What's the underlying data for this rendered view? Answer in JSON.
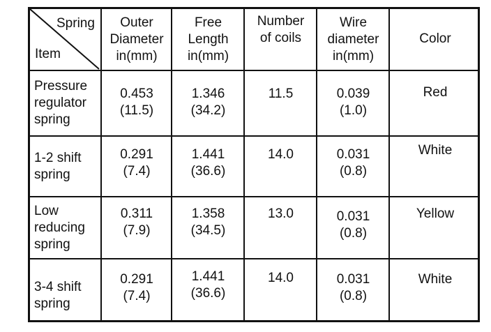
{
  "header": {
    "corner_top": "Spring",
    "corner_bottom": "Item",
    "columns": [
      [
        "Outer",
        "Diameter",
        "in(mm)"
      ],
      [
        "Free",
        "Length",
        "in(mm)"
      ],
      [
        "Number",
        "of coils"
      ],
      [
        "Wire",
        "diameter",
        "in(mm)"
      ],
      [
        "Color"
      ]
    ]
  },
  "rows": [
    {
      "item": [
        "Pressure",
        "regulator",
        "spring"
      ],
      "outer_diameter": [
        "0.453",
        "(11.5)"
      ],
      "free_length": [
        "1.346",
        "(34.2)"
      ],
      "number_of_coils": "11.5",
      "wire_diameter": [
        "0.039",
        "(1.0)"
      ],
      "color": "Red"
    },
    {
      "item": [
        "1-2 shift",
        "spring"
      ],
      "outer_diameter": [
        "0.291",
        "(7.4)"
      ],
      "free_length": [
        "1.441",
        "(36.6)"
      ],
      "number_of_coils": "14.0",
      "wire_diameter": [
        "0.031",
        "(0.8)"
      ],
      "color": "White"
    },
    {
      "item": [
        "Low",
        "reducing",
        "spring"
      ],
      "outer_diameter": [
        "0.311",
        "(7.9)"
      ],
      "free_length": [
        "1.358",
        "(34.5)"
      ],
      "number_of_coils": "13.0",
      "wire_diameter": [
        "0.031",
        "(0.8)"
      ],
      "color": "Yellow"
    },
    {
      "item": [
        "3-4 shift",
        "spring"
      ],
      "outer_diameter": [
        "0.291",
        "(7.4)"
      ],
      "free_length": [
        "1.441",
        "(36.6)"
      ],
      "number_of_coils": "14.0",
      "wire_diameter": [
        "0.031",
        "(0.8)"
      ],
      "color": "White"
    }
  ]
}
